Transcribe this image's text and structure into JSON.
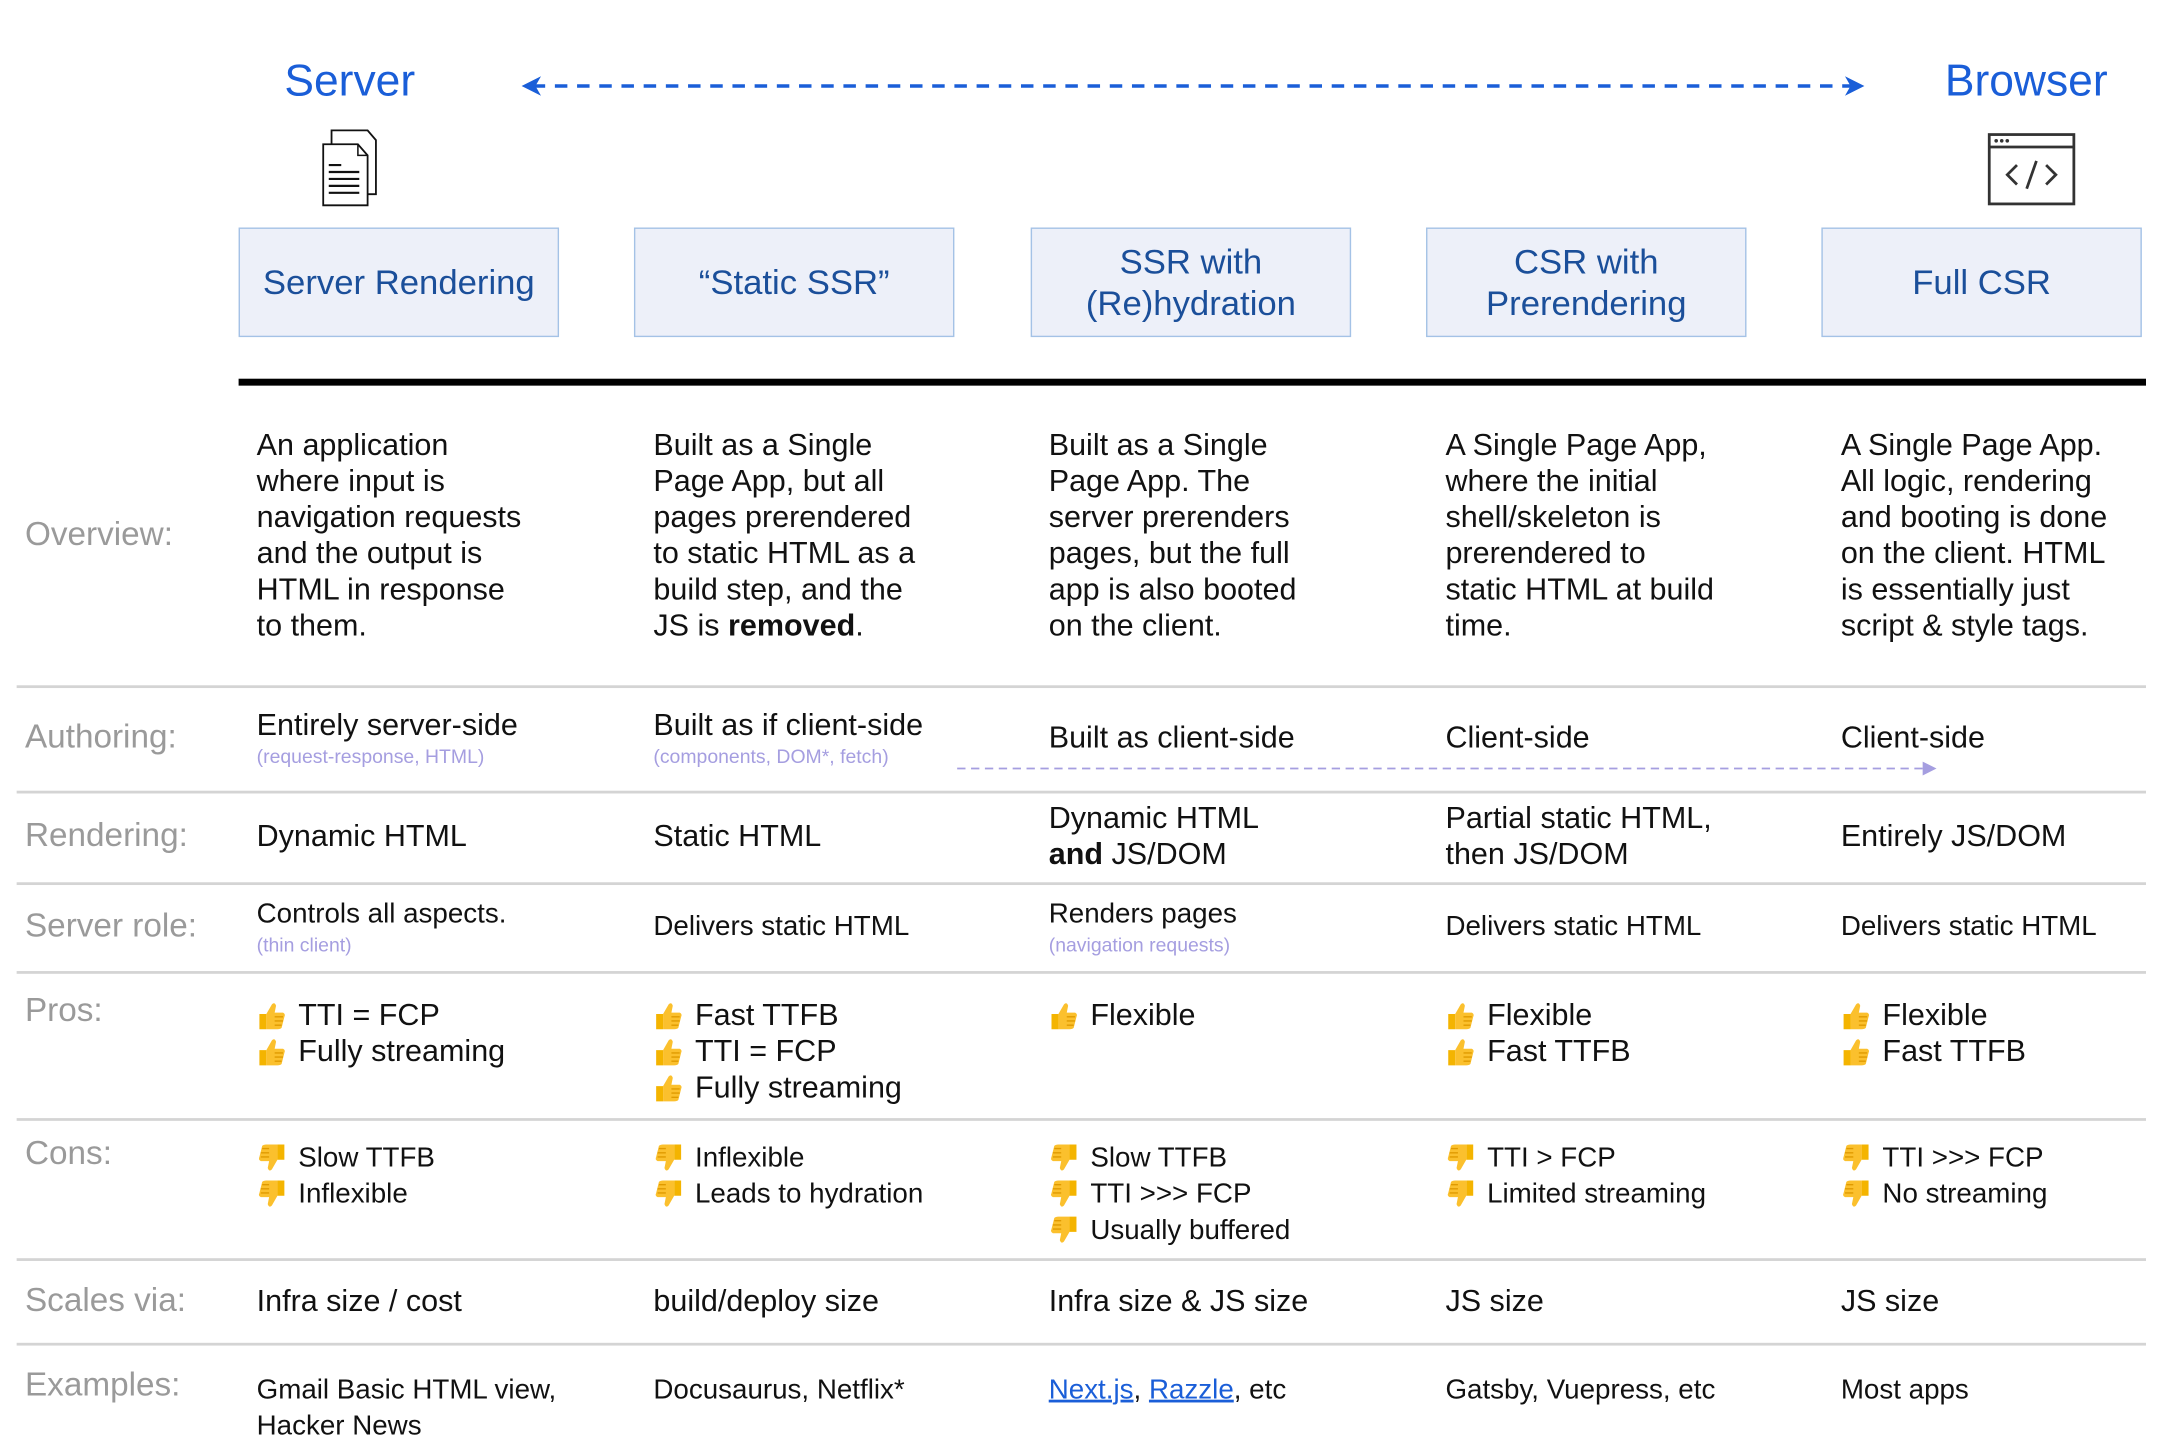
{
  "header": {
    "left_title": "Server",
    "right_title": "Browser",
    "left_icon": "document-icon",
    "right_icon": "browser-code-icon",
    "accent_color": "#1a5ed8",
    "columns": [
      "Server Rendering",
      "“Static SSR”",
      "SSR with (Re)hydration",
      "CSR with Prerendering",
      "Full CSR"
    ]
  },
  "rows": [
    {
      "label": "Overview:",
      "cells": [
        {
          "lines": [
            "An application",
            "where input is",
            "navigation requests",
            "and the output is",
            "HTML in response",
            "to them."
          ]
        },
        {
          "lines": [
            "Built as a Single",
            "Page App, but all",
            "pages prerendered",
            "to static HTML as a",
            "build step, and the",
            [
              {
                "t": "JS is "
              },
              {
                "t": "removed",
                "b": true
              },
              {
                "t": "."
              }
            ]
          ]
        },
        {
          "lines": [
            "Built as a Single",
            "Page App. The",
            "server prerenders",
            "pages, but the full",
            "app is also booted",
            "on the client."
          ]
        },
        {
          "lines": [
            "A Single Page App,",
            "where the initial",
            "shell/skeleton is",
            "prerendered to",
            "static HTML at build",
            "time."
          ]
        },
        {
          "lines": [
            "A Single Page App.",
            "All logic, rendering",
            "and booting is done",
            "on the client. HTML",
            "is essentially just",
            "script & style tags."
          ]
        }
      ]
    },
    {
      "label": "Authoring:",
      "cells": [
        {
          "lines": [
            "Entirely server-side"
          ],
          "sub": "(request-response, HTML)"
        },
        {
          "lines": [
            "Built as if client-side"
          ],
          "sub": "(components, DOM*, fetch)"
        },
        {
          "lines": [
            "Built as client-side"
          ]
        },
        {
          "lines": [
            "Client-side"
          ]
        },
        {
          "lines": [
            "Client-side"
          ]
        }
      ]
    },
    {
      "label": "Rendering:",
      "cells": [
        {
          "lines": [
            "Dynamic HTML"
          ]
        },
        {
          "lines": [
            "Static HTML"
          ]
        },
        {
          "lines": [
            "Dynamic HTML",
            [
              {
                "t": "and",
                "b": true
              },
              {
                "t": " JS/DOM"
              }
            ]
          ]
        },
        {
          "lines": [
            "Partial static HTML,",
            "then JS/DOM"
          ]
        },
        {
          "lines": [
            "Entirely JS/DOM"
          ]
        }
      ]
    },
    {
      "label": "Server role:",
      "cells": [
        {
          "lines": [
            "Controls all aspects."
          ],
          "sub": "(thin client)"
        },
        {
          "lines": [
            "Delivers static HTML"
          ]
        },
        {
          "lines": [
            "Renders pages"
          ],
          "sub": "(navigation requests)"
        },
        {
          "lines": [
            "Delivers static HTML"
          ]
        },
        {
          "lines": [
            "Delivers static HTML"
          ]
        }
      ]
    },
    {
      "label": "Pros:",
      "cells": [
        {
          "items": [
            "TTI = FCP",
            "Fully streaming"
          ],
          "icon": "thumbs-up"
        },
        {
          "items": [
            "Fast TTFB",
            "TTI = FCP",
            "Fully streaming"
          ],
          "icon": "thumbs-up"
        },
        {
          "items": [
            "Flexible"
          ],
          "icon": "thumbs-up"
        },
        {
          "items": [
            "Flexible",
            "Fast TTFB"
          ],
          "icon": "thumbs-up"
        },
        {
          "items": [
            "Flexible",
            "Fast TTFB"
          ],
          "icon": "thumbs-up"
        }
      ]
    },
    {
      "label": "Cons:",
      "cells": [
        {
          "items": [
            "Slow TTFB",
            "Inflexible"
          ],
          "icon": "thumbs-down"
        },
        {
          "items": [
            "Inflexible",
            "Leads to hydration"
          ],
          "icon": "thumbs-down"
        },
        {
          "items": [
            "Slow TTFB",
            "TTI >>> FCP",
            "Usually buffered"
          ],
          "icon": "thumbs-down"
        },
        {
          "items": [
            "TTI > FCP",
            "Limited streaming"
          ],
          "icon": "thumbs-down"
        },
        {
          "items": [
            "TTI >>> FCP",
            "No streaming"
          ],
          "icon": "thumbs-down"
        }
      ]
    },
    {
      "label": "Scales via:",
      "cells": [
        {
          "lines": [
            "Infra size / cost"
          ]
        },
        {
          "lines": [
            "build/deploy size"
          ]
        },
        {
          "lines": [
            "Infra size & JS size"
          ]
        },
        {
          "lines": [
            "JS size"
          ]
        },
        {
          "lines": [
            "JS size"
          ]
        }
      ]
    },
    {
      "label": "Examples:",
      "cells": [
        {
          "lines": [
            "Gmail Basic HTML view,",
            "Hacker News"
          ]
        },
        {
          "lines": [
            "Docusaurus, Netflix*"
          ]
        },
        {
          "lines": [
            [
              {
                "t": "Next.js",
                "link": true
              },
              {
                "t": ", "
              },
              {
                "t": "Razzle",
                "link": true
              },
              {
                "t": ", etc"
              }
            ]
          ]
        },
        {
          "lines": [
            "Gatsby, Vuepress, etc"
          ]
        },
        {
          "lines": [
            "Most apps"
          ]
        }
      ]
    }
  ]
}
